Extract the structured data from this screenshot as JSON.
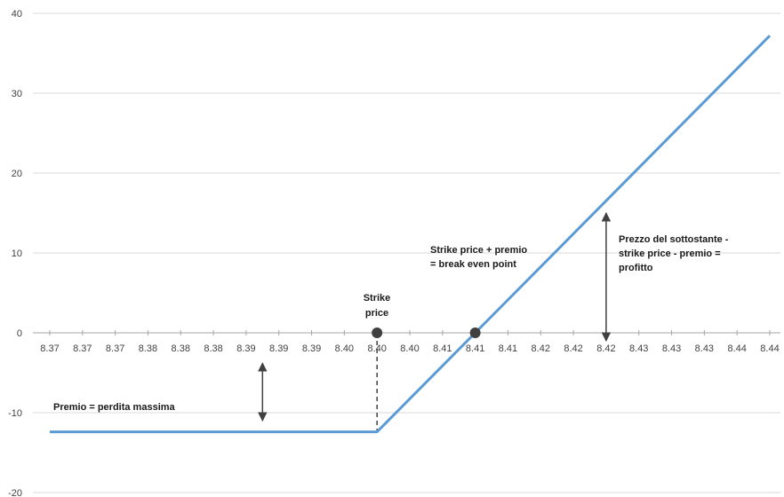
{
  "chart_data": {
    "type": "line",
    "title": "",
    "xlabel": "",
    "ylabel": "",
    "ylim": [
      -20,
      40
    ],
    "yticks": [
      -20,
      -10,
      0,
      10,
      20,
      30,
      40
    ],
    "x_tick_labels": [
      "8.37",
      "8.37",
      "8.37",
      "8.38",
      "8.38",
      "8.38",
      "8.39",
      "8.39",
      "8.39",
      "8.40",
      "8.40",
      "8.40",
      "8.41",
      "8.41",
      "8.41",
      "8.42",
      "8.42",
      "8.42",
      "8.43",
      "8.43",
      "8.43",
      "8.44",
      "8.44"
    ],
    "grid": "horizontal",
    "legend": "none",
    "series": [
      {
        "color": "#5b9bd5",
        "points": [
          {
            "x_index": 0,
            "y": -12.4
          },
          {
            "x_index": 10,
            "y": -12.4
          },
          {
            "x_index": 13,
            "y": 0
          },
          {
            "x_index": 22,
            "y": 37.2
          }
        ]
      }
    ],
    "markers": [
      {
        "x_index": 10,
        "y": 0,
        "color": "#404040"
      },
      {
        "x_index": 13,
        "y": 0,
        "color": "#404040"
      }
    ],
    "guides": [
      {
        "kind": "dashed-vertical",
        "x_index": 10,
        "y_from": 0,
        "y_to": -12.4
      },
      {
        "kind": "double-arrow",
        "x_index": 6.5,
        "y_from": -3.8,
        "y_to": -11
      },
      {
        "kind": "double-arrow",
        "x_index": 17,
        "y_from": 15,
        "y_to": -1
      }
    ],
    "annotations": [
      {
        "id": "strike",
        "lines": [
          "Strike",
          "price"
        ]
      },
      {
        "id": "breakeven",
        "lines": [
          "Strike price + premio",
          "= break even point"
        ]
      },
      {
        "id": "profit",
        "lines": [
          "Prezzo del sottostante -",
          "strike price - premio =",
          "profitto"
        ]
      },
      {
        "id": "premio",
        "lines": [
          "Premio = perdita massima"
        ]
      }
    ]
  }
}
